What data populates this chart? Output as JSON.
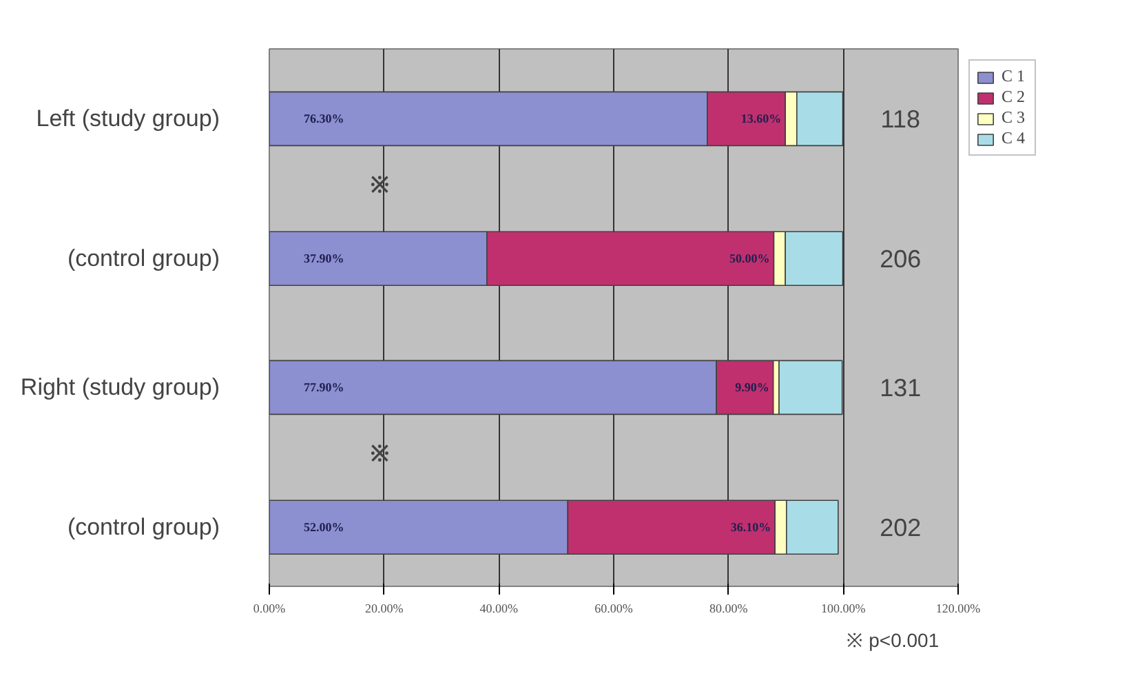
{
  "chart_data": {
    "type": "bar",
    "orientation": "horizontal",
    "stacked": true,
    "categories": [
      "Left (study group)",
      "(control group)",
      "Right (study group)",
      "(control group)"
    ],
    "series": [
      {
        "name": "C 1",
        "color": "#8c8fd0",
        "values": [
          76.3,
          37.9,
          77.9,
          52.0
        ],
        "value_labels": [
          "76.30%",
          "37.90%",
          "77.90%",
          "52.00%"
        ]
      },
      {
        "name": "C 2",
        "color": "#c0306e",
        "values": [
          13.6,
          50.0,
          9.9,
          36.1
        ],
        "value_labels": [
          "13.60%",
          "50.00%",
          "9.90%",
          "36.10%"
        ]
      },
      {
        "name": "C 3",
        "color": "#ffffc0",
        "values": [
          2,
          2,
          1,
          2
        ]
      },
      {
        "name": "C 4",
        "color": "#a8dde8",
        "values": [
          8,
          10,
          11,
          9
        ]
      }
    ],
    "xlim": [
      0,
      120
    ],
    "xticks": [
      {
        "value": 0,
        "label": "0.00%"
      },
      {
        "value": 20,
        "label": "20.00%"
      },
      {
        "value": 40,
        "label": "40.00%"
      },
      {
        "value": 60,
        "label": "60.00%"
      },
      {
        "value": 80,
        "label": "80.00%"
      },
      {
        "value": 100,
        "label": "100.00%"
      },
      {
        "value": 120,
        "label": "120.00%"
      }
    ],
    "grid": "x",
    "legend": "top right",
    "annotations": [
      "118",
      "206",
      "131",
      "202",
      "※",
      "※",
      "※  p<0.001"
    ]
  }
}
